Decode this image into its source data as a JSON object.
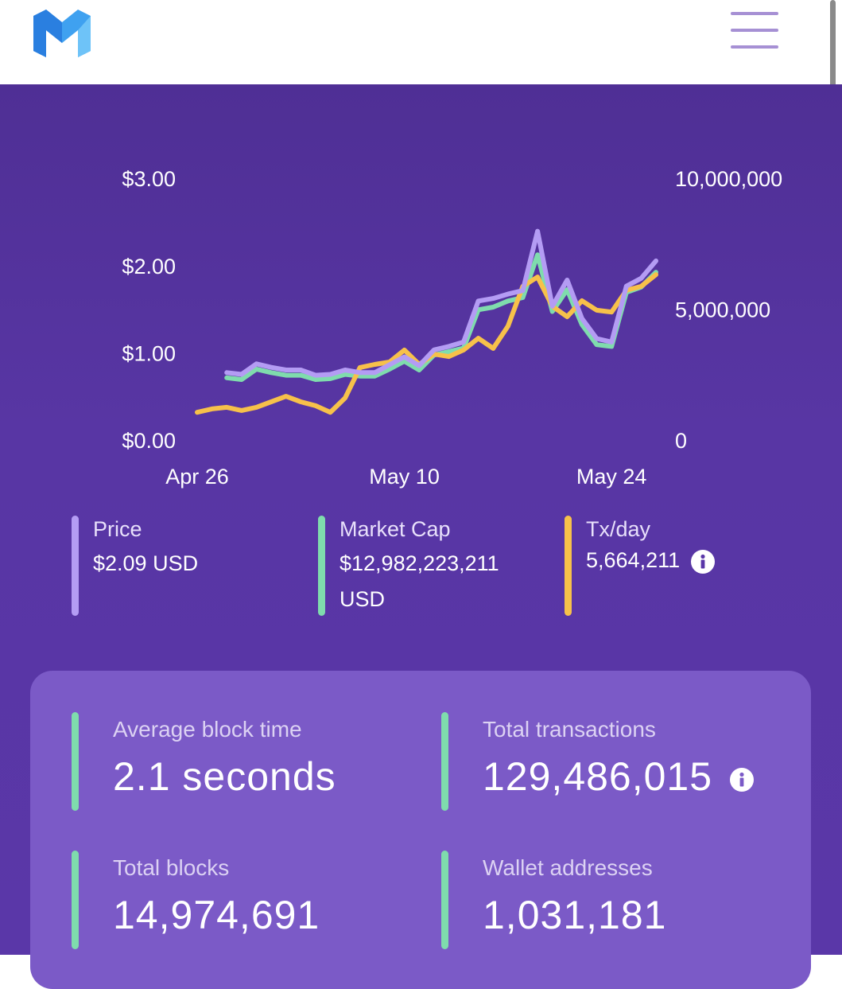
{
  "chart_data": {
    "type": "line",
    "categories": [
      "Apr 26",
      null,
      null,
      null,
      null,
      null,
      null,
      null,
      null,
      null,
      null,
      null,
      null,
      null,
      "May 10",
      null,
      null,
      null,
      null,
      null,
      null,
      null,
      null,
      null,
      null,
      null,
      null,
      null,
      "May 24",
      null,
      null,
      null
    ],
    "series": [
      {
        "name": "Price",
        "color": "#b49cf4",
        "values": [
          null,
          null,
          0.8,
          0.78,
          0.9,
          0.86,
          0.83,
          0.83,
          0.77,
          0.78,
          0.83,
          0.8,
          0.8,
          0.89,
          0.98,
          0.88,
          1.06,
          1.1,
          1.15,
          1.62,
          1.65,
          1.7,
          1.74,
          2.42,
          1.56,
          1.86,
          1.42,
          1.19,
          1.15,
          1.79,
          1.88,
          2.08
        ]
      },
      {
        "name": "Market Cap",
        "color": "#7fdcad",
        "values": [
          null,
          null,
          0.74,
          0.72,
          0.84,
          0.8,
          0.77,
          0.77,
          0.72,
          0.73,
          0.78,
          0.76,
          0.76,
          0.84,
          0.93,
          0.83,
          1.0,
          1.04,
          1.08,
          1.52,
          1.55,
          1.62,
          1.66,
          2.15,
          1.5,
          1.75,
          1.35,
          1.12,
          1.1,
          1.72,
          1.78,
          1.95
        ]
      },
      {
        "name": "Tx/day",
        "color": "#f7c14a",
        "axis": "y2",
        "values": [
          1150000,
          1280000,
          1340000,
          1220000,
          1340000,
          1550000,
          1760000,
          1550000,
          1400000,
          1150000,
          1700000,
          2860000,
          2980000,
          3070000,
          3530000,
          2980000,
          3370000,
          3280000,
          3530000,
          3980000,
          3590000,
          4440000,
          5960000,
          6320000,
          5200000,
          4800000,
          5410000,
          5050000,
          4980000,
          5810000,
          5960000,
          6410000
        ]
      }
    ],
    "ylim": [
      0,
      3
    ],
    "yticks": [
      {
        "value": 0,
        "label": "$0.00"
      },
      {
        "value": 1,
        "label": "$1.00"
      },
      {
        "value": 2,
        "label": "$2.00"
      },
      {
        "value": 3,
        "label": "$3.00"
      }
    ],
    "y2lim": [
      0,
      10000000
    ],
    "y2ticks": [
      0,
      {
        "value": 5000000,
        "label": "5,000,000"
      },
      {
        "value": 10000000,
        "label": "10,000,000"
      }
    ],
    "grid": false
  },
  "summary": [
    "$2.09 USD",
    "$12,982,223,211 USD",
    "5,664,211"
  ],
  "stats": [
    {
      "label": "Average block time",
      "value": "2.1 seconds"
    },
    {
      "label": "Total transactions",
      "value": "129,486,015"
    },
    {
      "label": "Total blocks",
      "value": "14,974,691"
    },
    {
      "label": "Wallet addresses",
      "value": "1,031,181"
    }
  ]
}
